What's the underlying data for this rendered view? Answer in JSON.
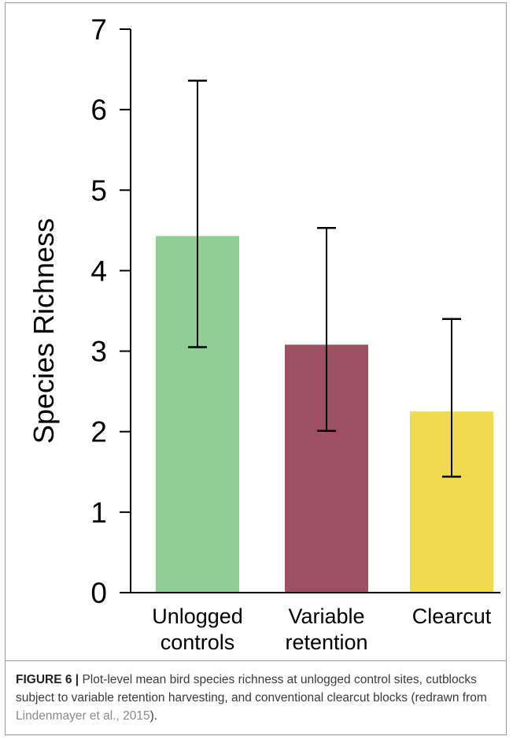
{
  "chart_data": {
    "type": "bar",
    "categories": [
      "Unlogged controls",
      "Variable retention",
      "Clearcut"
    ],
    "category_lines": [
      [
        "Unlogged",
        "controls"
      ],
      [
        "Variable",
        "retention"
      ],
      [
        "Clearcut"
      ]
    ],
    "values": [
      4.43,
      3.08,
      2.25
    ],
    "error_low": [
      3.05,
      2.01,
      1.44
    ],
    "error_high": [
      6.36,
      4.53,
      3.4
    ],
    "colors": [
      "#90ce95",
      "#9c5062",
      "#f0da4f"
    ],
    "ylabel": "Species Richness",
    "xlabel": "",
    "ylim": [
      0,
      7
    ],
    "yticks": [
      0,
      1,
      2,
      3,
      4,
      5,
      6,
      7
    ],
    "grid": false
  },
  "caption": {
    "label": "FIGURE 6 |",
    "text": "Plot-level mean bird species richness at unlogged control sites, cutblocks subject to variable retention harvesting, and conventional clearcut blocks (redrawn from",
    "reference": "Lindenmayer et al., 2015",
    "tail": ")."
  }
}
